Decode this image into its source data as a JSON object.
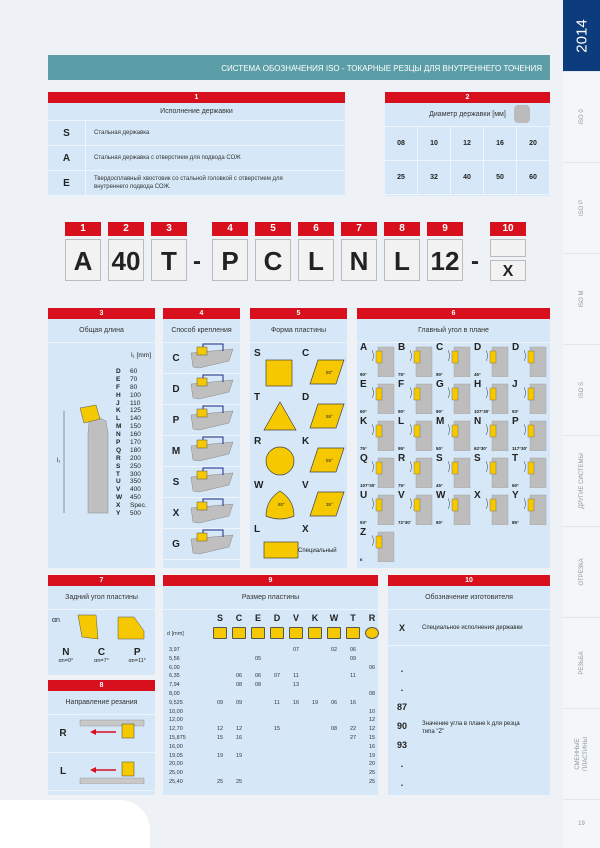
{
  "header": {
    "title": "СИСТЕМА ОБОЗНАЧЕНИЯ ISO - ТОКАРНЫЕ РЕЗЦЫ ДЛЯ ВНУТРЕННЕГО ТОЧЕНИЯ"
  },
  "sidebar": {
    "year": "2014",
    "tabs": [
      "ISO 0",
      "ISO P",
      "ISO M",
      "ISO S",
      "ДРУГИЕ СИСТЕМЫ",
      "ОТРЕЗКА",
      "РЕЗЬБА",
      "СМЕННЫЕ ПЛАСТИНЫ"
    ],
    "page": "19"
  },
  "s1": {
    "num": "1",
    "title": "Исполнение державки",
    "rows": [
      {
        "k": "S",
        "v": "Стальная державка"
      },
      {
        "k": "A",
        "v": "Стальная державка с отверстием для подвода СОЖ"
      },
      {
        "k": "E",
        "v": "Твердосплавный хвостовик со стальной головкой с отверстием для внутреннего подвода СОЖ."
      }
    ]
  },
  "s2": {
    "num": "2",
    "title": "Диаметр державки [мм]",
    "values": [
      "08",
      "10",
      "12",
      "16",
      "20",
      "25",
      "32",
      "40",
      "50",
      "60"
    ]
  },
  "code": {
    "nums": [
      "1",
      "2",
      "3",
      "4",
      "5",
      "6",
      "7",
      "8",
      "9",
      "10"
    ],
    "chars": [
      "A",
      "40",
      "T",
      "P",
      "C",
      "L",
      "N",
      "L",
      "12",
      "X"
    ],
    "dash": "-"
  },
  "s3": {
    "num": "3",
    "title": "Общая длина",
    "unit": "l₁ [mm]",
    "axis": "l₁",
    "rows": [
      [
        "D",
        "60"
      ],
      [
        "E",
        "70"
      ],
      [
        "F",
        "80"
      ],
      [
        "H",
        "100"
      ],
      [
        "J",
        "110"
      ],
      [
        "K",
        "125"
      ],
      [
        "L",
        "140"
      ],
      [
        "M",
        "150"
      ],
      [
        "N",
        "160"
      ],
      [
        "P",
        "170"
      ],
      [
        "Q",
        "180"
      ],
      [
        "R",
        "200"
      ],
      [
        "S",
        "250"
      ],
      [
        "T",
        "300"
      ],
      [
        "U",
        "350"
      ],
      [
        "V",
        "400"
      ],
      [
        "W",
        "450"
      ],
      [
        "X",
        "Spec."
      ],
      [
        "Y",
        "500"
      ]
    ]
  },
  "s4": {
    "num": "4",
    "title": "Способ крепления",
    "rows": [
      "C",
      "D",
      "P",
      "M",
      "S",
      "X",
      "G"
    ]
  },
  "s5": {
    "num": "5",
    "title": "Форма пластины",
    "items": [
      {
        "k": "S",
        "shape": "square"
      },
      {
        "k": "C",
        "shape": "rhombus",
        "a": "80°"
      },
      {
        "k": "T",
        "shape": "triangle"
      },
      {
        "k": "D",
        "shape": "rhombus",
        "a": "55°"
      },
      {
        "k": "R",
        "shape": "circle"
      },
      {
        "k": "K",
        "shape": "rhombus",
        "a": "55°"
      },
      {
        "k": "W",
        "shape": "trigon",
        "a": "80°"
      },
      {
        "k": "V",
        "shape": "rhombus",
        "a": "35°"
      },
      {
        "k": "L",
        "shape": "rectangle"
      },
      {
        "k": "X",
        "shape": "special",
        "label": "Специальный"
      }
    ]
  },
  "s6": {
    "num": "6",
    "title": "Главный угол в плане",
    "items": [
      [
        "A",
        "90°"
      ],
      [
        "B",
        "75°"
      ],
      [
        "C",
        "90°"
      ],
      [
        "D",
        "45°"
      ],
      [
        "D",
        ""
      ],
      [
        "E",
        "60°"
      ],
      [
        "F",
        "90°"
      ],
      [
        "G",
        "90°"
      ],
      [
        "H",
        "107°30'"
      ],
      [
        "J",
        "93°"
      ],
      [
        "K",
        "75°"
      ],
      [
        "L",
        "95°"
      ],
      [
        "M",
        "50°"
      ],
      [
        "N",
        "62°30'"
      ],
      [
        "P",
        "117°30'"
      ],
      [
        "Q",
        "107°30'"
      ],
      [
        "R",
        "75°"
      ],
      [
        "S",
        "45°"
      ],
      [
        "S",
        ""
      ],
      [
        "T",
        "60°"
      ],
      [
        "U",
        "93°"
      ],
      [
        "V",
        "72°30'"
      ],
      [
        "W",
        "60°"
      ],
      [
        "X",
        ""
      ],
      [
        "Y",
        "85°"
      ],
      [
        "Z",
        "κ"
      ]
    ]
  },
  "s7": {
    "num": "7",
    "title": "Задний угол пластины",
    "symbol": "αn",
    "items": [
      {
        "k": "N",
        "v": "αn=0°"
      },
      {
        "k": "C",
        "v": "αn=7°"
      },
      {
        "k": "P",
        "v": "αn=11°"
      }
    ]
  },
  "s8": {
    "num": "8",
    "title": "Направление резания",
    "items": [
      "R",
      "L"
    ]
  },
  "s9": {
    "num": "9",
    "title": "Размер пластины",
    "dlabel": "d [mm]",
    "cols": [
      "S",
      "C",
      "E",
      "D",
      "V",
      "K",
      "W",
      "T",
      "R"
    ],
    "rows": [
      {
        "d": "3,97",
        "v": [
          "",
          "",
          "",
          "",
          "07",
          "",
          "02",
          "06",
          ""
        ]
      },
      {
        "d": "5,56",
        "v": [
          "",
          "",
          "05",
          "",
          "",
          "",
          "",
          "09",
          ""
        ]
      },
      {
        "d": "6,00",
        "v": [
          "",
          "",
          "",
          "",
          "",
          "",
          "",
          "",
          "06"
        ]
      },
      {
        "d": "6,35",
        "v": [
          "",
          "06",
          "06",
          "07",
          "11",
          "",
          "",
          "11",
          ""
        ]
      },
      {
        "d": "7,94",
        "v": [
          "",
          "08",
          "08",
          "",
          "13",
          "",
          "",
          "",
          ""
        ]
      },
      {
        "d": "8,00",
        "v": [
          "",
          "",
          "",
          "",
          "",
          "",
          "",
          "",
          "08"
        ]
      },
      {
        "d": "9,525",
        "v": [
          "09",
          "09",
          "",
          "11",
          "16",
          "19",
          "06",
          "16",
          ""
        ]
      },
      {
        "d": "10,00",
        "v": [
          "",
          "",
          "",
          "",
          "",
          "",
          "",
          "",
          "10"
        ]
      },
      {
        "d": "12,00",
        "v": [
          "",
          "",
          "",
          "",
          "",
          "",
          "",
          "",
          "12"
        ]
      },
      {
        "d": "12,70",
        "v": [
          "12",
          "12",
          "",
          "15",
          "",
          "",
          "08",
          "22",
          "12"
        ]
      },
      {
        "d": "15,875",
        "v": [
          "15",
          "16",
          "",
          "",
          "",
          "",
          "",
          "27",
          "15"
        ]
      },
      {
        "d": "16,00",
        "v": [
          "",
          "",
          "",
          "",
          "",
          "",
          "",
          "",
          "16"
        ]
      },
      {
        "d": "19,05",
        "v": [
          "19",
          "19",
          "",
          "",
          "",
          "",
          "",
          "",
          "19"
        ]
      },
      {
        "d": "20,00",
        "v": [
          "",
          "",
          "",
          "",
          "",
          "",
          "",
          "",
          "20"
        ]
      },
      {
        "d": "25,00",
        "v": [
          "",
          "",
          "",
          "",
          "",
          "",
          "",
          "",
          "25"
        ]
      },
      {
        "d": "25,40",
        "v": [
          "25",
          "25",
          "",
          "",
          "",
          "",
          "",
          "",
          "25"
        ]
      }
    ]
  },
  "s10": {
    "num": "10",
    "title": "Обозначение изготовителя",
    "x": "X",
    "xdesc": "Специальное исполнения державки",
    "codes": [
      ".",
      ".",
      "87",
      "90",
      "93",
      ".",
      "."
    ],
    "desc": "Значение угла в плане k для резца типа \"Z\""
  },
  "colors": {
    "red": "#d8101d",
    "teal": "#5c9ea7",
    "panel": "#d6e8f7",
    "insert": "#f5c800",
    "navy": "#0d3c7c"
  }
}
